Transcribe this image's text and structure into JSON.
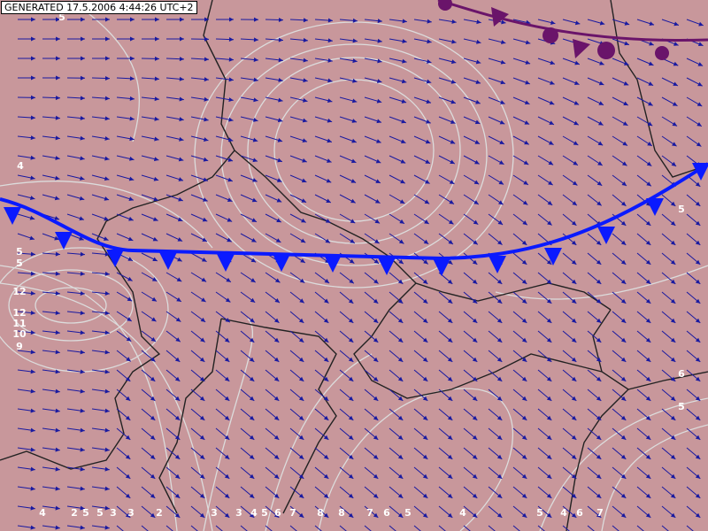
{
  "header": {
    "generated": "GENERATED 17.5.2006 4:44:26 UTC+2"
  },
  "contour_labels": [
    5,
    4,
    5,
    5,
    12,
    12,
    11,
    10,
    9,
    5,
    6,
    5,
    4,
    2,
    5,
    5,
    3,
    3,
    2,
    3,
    3,
    4,
    5,
    6,
    7,
    8,
    8,
    7,
    6,
    5,
    4,
    5,
    4,
    6,
    7
  ]
}
